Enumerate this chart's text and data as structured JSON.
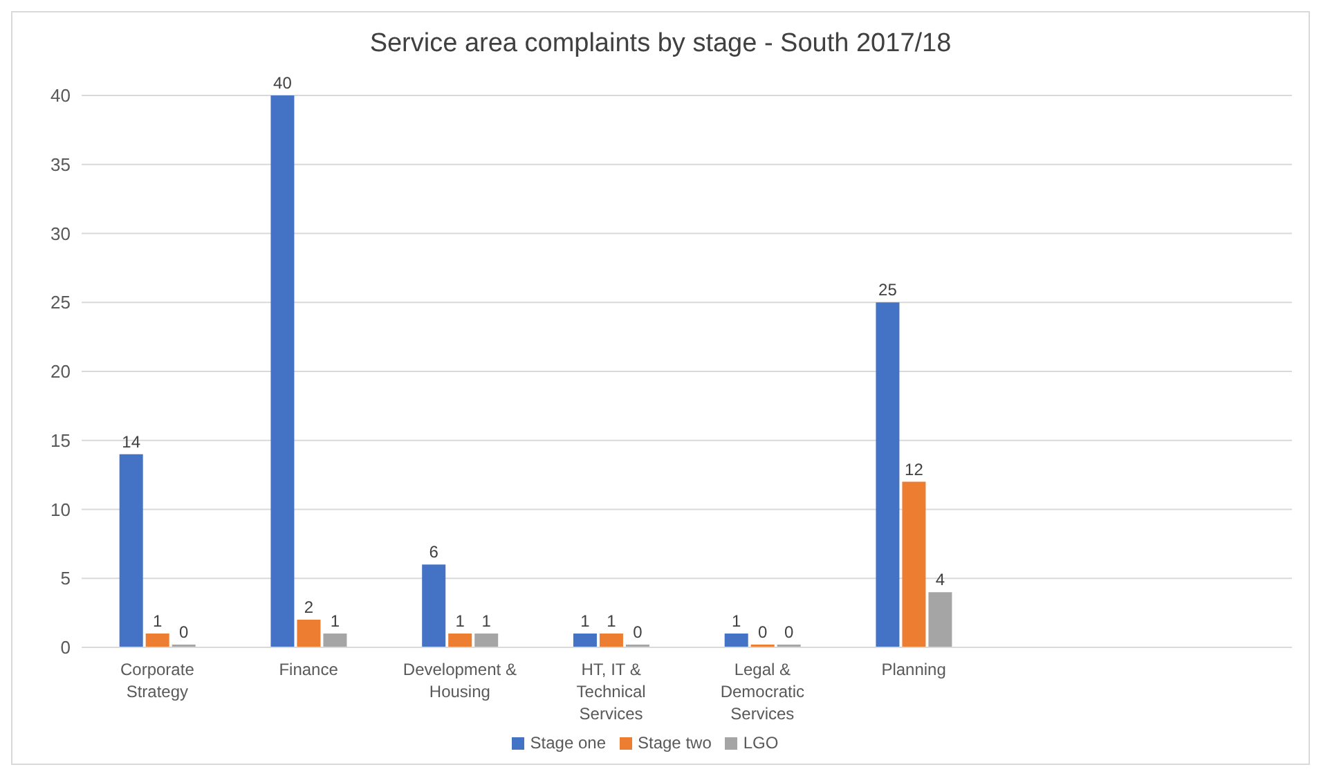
{
  "chart_data": {
    "type": "bar",
    "title": "Service area complaints by stage - South 2017/18",
    "categories": [
      "Corporate Strategy",
      "Finance",
      "Development & Housing",
      "HT, IT & Technical Services",
      "Legal & Democratic Services",
      "Planning",
      null,
      null
    ],
    "series": [
      {
        "name": "Stage one",
        "color": "#4472c4",
        "values": [
          14,
          40,
          6,
          1,
          1,
          25,
          null,
          null
        ]
      },
      {
        "name": "Stage two",
        "color": "#ed7d31",
        "values": [
          1,
          2,
          1,
          1,
          0,
          12,
          null,
          null
        ]
      },
      {
        "name": "LGO",
        "color": "#a5a5a5",
        "values": [
          0,
          1,
          1,
          0,
          0,
          4,
          null,
          null
        ]
      }
    ],
    "ylim": [
      0,
      40
    ],
    "yticks": [
      0,
      5,
      10,
      15,
      20,
      25,
      30,
      35,
      40
    ],
    "grid": "y",
    "legend": "bottom",
    "data_labels": true
  }
}
